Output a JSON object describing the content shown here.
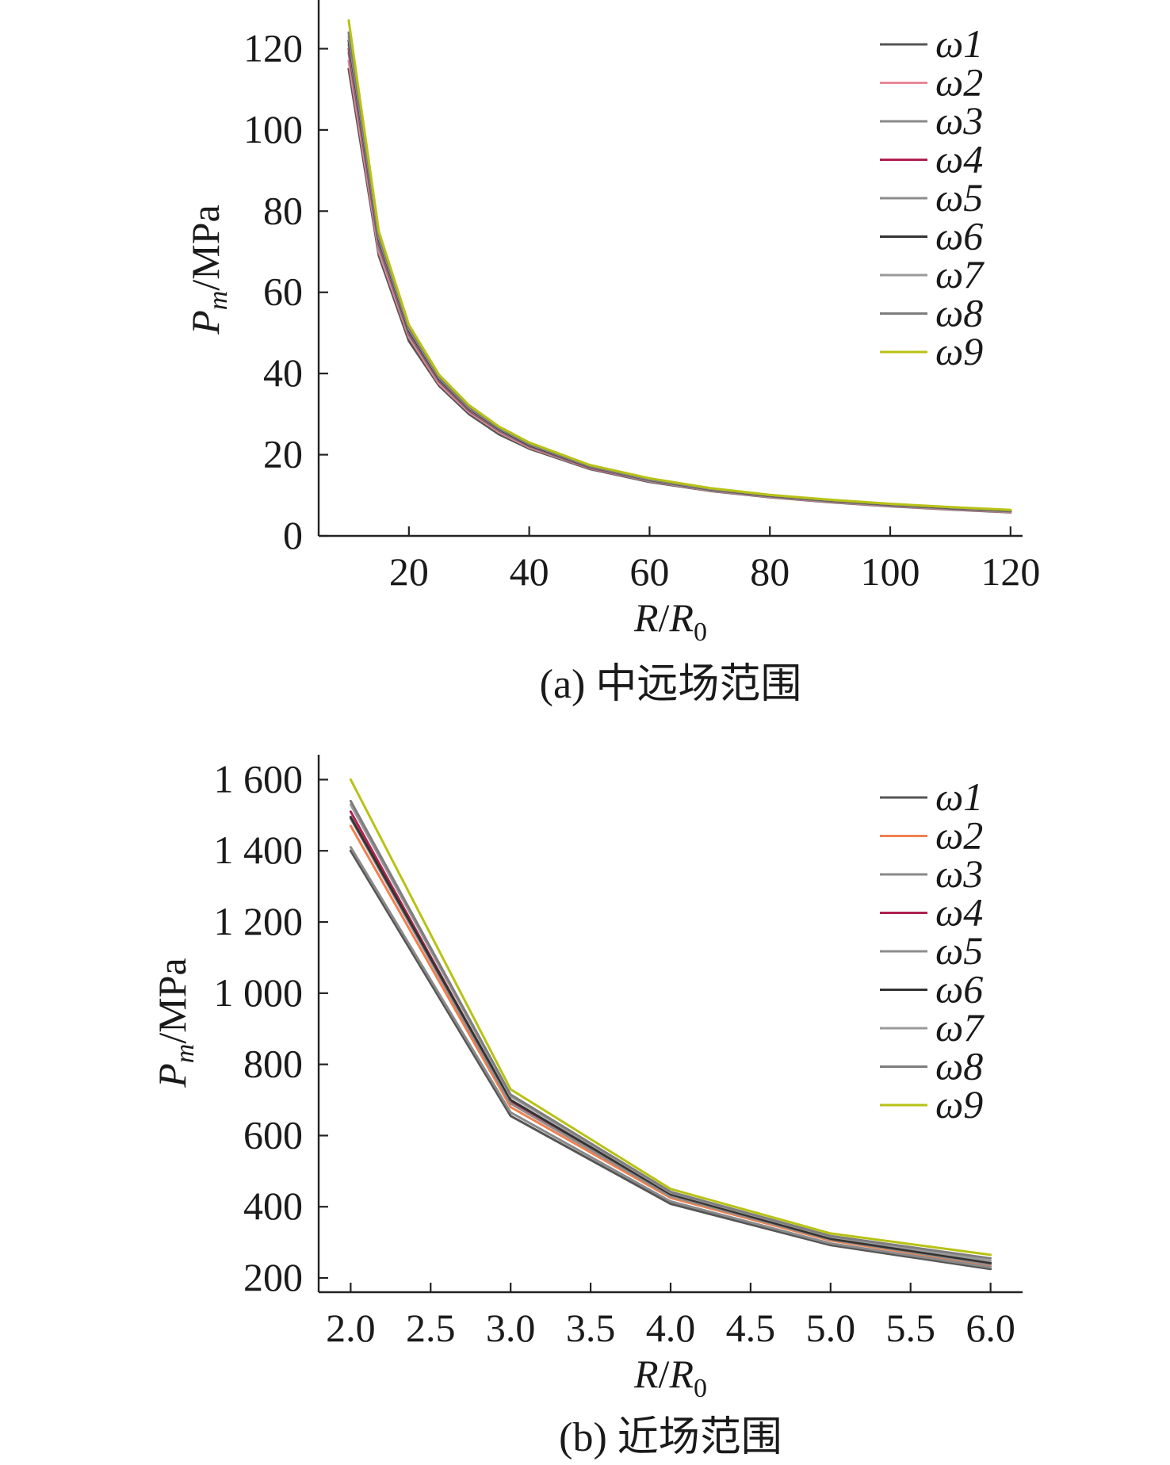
{
  "chart_data": [
    {
      "type": "line",
      "panel_id": "a",
      "caption": "(a) 中远场范围",
      "xlabel_main": "R",
      "xlabel_slash": "/",
      "xlabel_main2": "R",
      "xlabel_sub": "0",
      "ylabel_main": "P",
      "ylabel_sub": "m",
      "ylabel_unit": "/MPa",
      "xlim": [
        5,
        122
      ],
      "ylim": [
        0,
        132
      ],
      "xticks": [
        20,
        40,
        60,
        80,
        100,
        120
      ],
      "xtick_labels": [
        "20",
        "40",
        "60",
        "80",
        "100",
        "120"
      ],
      "yticks": [
        0,
        20,
        40,
        60,
        80,
        100,
        120
      ],
      "ytick_labels": [
        "0",
        "20",
        "40",
        "60",
        "80",
        "100",
        "120"
      ],
      "legend_position": "top-right",
      "x": [
        10,
        15,
        20,
        25,
        30,
        35,
        40,
        50,
        60,
        70,
        80,
        90,
        100,
        110,
        120
      ],
      "series": [
        {
          "name": "ω1",
          "color": "#555555",
          "values": [
            115,
            69,
            48,
            37,
            30,
            25,
            21.5,
            16.5,
            13.3,
            11.1,
            9.5,
            8.3,
            7.3,
            6.5,
            5.8
          ]
        },
        {
          "name": "ω2",
          "color": "#e8889a",
          "values": [
            117,
            70,
            49,
            37.5,
            30.5,
            25.5,
            21.8,
            16.7,
            13.5,
            11.2,
            9.6,
            8.4,
            7.4,
            6.6,
            5.9
          ]
        },
        {
          "name": "ω3",
          "color": "#8a8a8a",
          "values": [
            119,
            71,
            49.5,
            38,
            30.8,
            25.8,
            22.0,
            16.8,
            13.6,
            11.3,
            9.7,
            8.5,
            7.5,
            6.7,
            6.0
          ]
        },
        {
          "name": "ω4",
          "color": "#b02050",
          "values": [
            120,
            72,
            50,
            38.3,
            31,
            26,
            22.2,
            16.9,
            13.7,
            11.4,
            9.8,
            8.6,
            7.6,
            6.8,
            6.1
          ]
        },
        {
          "name": "ω5",
          "color": "#8c8c8c",
          "values": [
            121,
            72.5,
            50.3,
            38.5,
            31.2,
            26.1,
            22.3,
            17.0,
            13.7,
            11.4,
            9.8,
            8.6,
            7.6,
            6.8,
            6.1
          ]
        },
        {
          "name": "ω6",
          "color": "#333333",
          "values": [
            122,
            73,
            50.6,
            38.7,
            31.4,
            26.3,
            22.4,
            17.1,
            13.8,
            11.5,
            9.9,
            8.7,
            7.7,
            6.9,
            6.2
          ]
        },
        {
          "name": "ω7",
          "color": "#9a9a9a",
          "values": [
            123,
            73.5,
            51,
            39,
            31.6,
            26.5,
            22.6,
            17.2,
            13.9,
            11.6,
            10.0,
            8.8,
            7.8,
            7.0,
            6.3
          ]
        },
        {
          "name": "ω8",
          "color": "#7d7d7d",
          "values": [
            124,
            74,
            51.3,
            39.2,
            31.8,
            26.6,
            22.7,
            17.3,
            14.0,
            11.7,
            10.0,
            8.8,
            7.8,
            7.0,
            6.3
          ]
        },
        {
          "name": "ω9",
          "color": "#b8c214",
          "values": [
            127,
            75,
            52,
            39.7,
            32.2,
            26.9,
            23.0,
            17.5,
            14.2,
            11.8,
            10.1,
            8.9,
            7.9,
            7.1,
            6.4
          ]
        }
      ]
    },
    {
      "type": "line",
      "panel_id": "b",
      "caption": "(b) 近场范围",
      "xlabel_main": "R",
      "xlabel_slash": "/",
      "xlabel_main2": "R",
      "xlabel_sub": "0",
      "ylabel_main": "P",
      "ylabel_sub": "m",
      "ylabel_unit": "/MPa",
      "xlim": [
        1.8,
        6.2
      ],
      "ylim": [
        160,
        1670
      ],
      "xticks": [
        2.0,
        2.5,
        3.0,
        3.5,
        4.0,
        4.5,
        5.0,
        5.5,
        6.0
      ],
      "xtick_labels": [
        "2.0",
        "2.5",
        "3.0",
        "3.5",
        "4.0",
        "4.5",
        "5.0",
        "5.5",
        "6.0"
      ],
      "yticks": [
        200,
        400,
        600,
        800,
        1000,
        1200,
        1400,
        1600
      ],
      "ytick_labels": [
        "200",
        "400",
        "600",
        "800",
        "1 000",
        "1 200",
        "1 400",
        "1 600"
      ],
      "legend_position": "top-right",
      "x": [
        2.0,
        3.0,
        4.0,
        5.0,
        6.0
      ],
      "series": [
        {
          "name": "ω1",
          "color": "#555555",
          "values": [
            1400,
            655,
            408,
            292,
            225
          ]
        },
        {
          "name": "ω2",
          "color": "#f08050",
          "values": [
            1470,
            680,
            425,
            305,
            235
          ]
        },
        {
          "name": "ω3",
          "color": "#8a8a8a",
          "values": [
            1410,
            665,
            415,
            297,
            230
          ]
        },
        {
          "name": "ω4",
          "color": "#b02050",
          "values": [
            1510,
            695,
            432,
            312,
            240
          ]
        },
        {
          "name": "ω5",
          "color": "#8c8c8c",
          "values": [
            1490,
            690,
            430,
            308,
            238
          ]
        },
        {
          "name": "ω6",
          "color": "#333333",
          "values": [
            1495,
            700,
            435,
            310,
            242
          ]
        },
        {
          "name": "ω7",
          "color": "#9a9a9a",
          "values": [
            1530,
            710,
            440,
            316,
            248
          ]
        },
        {
          "name": "ω8",
          "color": "#7d7d7d",
          "values": [
            1540,
            715,
            442,
            318,
            255
          ]
        },
        {
          "name": "ω9",
          "color": "#b8c214",
          "values": [
            1600,
            730,
            450,
            325,
            265
          ]
        }
      ]
    }
  ]
}
